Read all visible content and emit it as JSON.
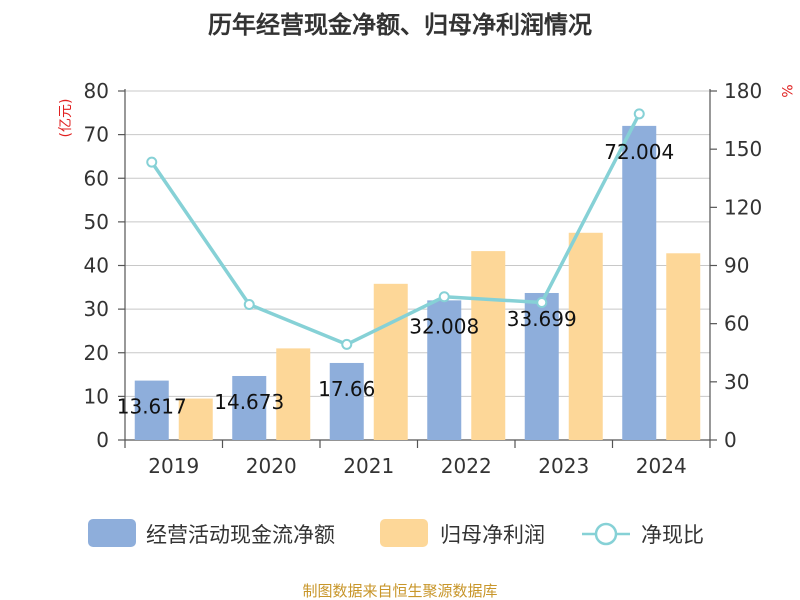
{
  "chart_data": {
    "type": "bar",
    "title": "历年经营现金净额、归母净利润情况",
    "categories": [
      "2019",
      "2020",
      "2021",
      "2022",
      "2023",
      "2024"
    ],
    "series": [
      {
        "name": "经营活动现金流净额",
        "kind": "bar",
        "axis": "left",
        "color": "#8eaedb",
        "values": [
          13.617,
          14.673,
          17.66,
          32.008,
          33.699,
          72.004
        ],
        "labels": [
          "13.617",
          "14.673",
          "17.66",
          "32.008",
          "33.699",
          "72.004"
        ]
      },
      {
        "name": "归母净利润",
        "kind": "bar",
        "axis": "left",
        "color": "#fdd798",
        "values": [
          9.5,
          21.0,
          35.8,
          43.3,
          47.5,
          42.8
        ]
      },
      {
        "name": "净现比",
        "kind": "line",
        "axis": "right",
        "color": "#86d1d6",
        "values": [
          143.3,
          69.9,
          49.3,
          73.9,
          70.9,
          168.2
        ]
      }
    ],
    "ylim_left": [
      0,
      80
    ],
    "yticks_left": [
      0,
      10,
      20,
      30,
      40,
      50,
      60,
      70,
      80
    ],
    "ylabel_left": "(亿元)",
    "ylim_right": [
      0,
      180
    ],
    "yticks_right": [
      0,
      30,
      60,
      90,
      120,
      150,
      180
    ],
    "ylabel_right": "%",
    "grid": true,
    "legend_position": "bottom"
  },
  "source": "制图数据来自恒生聚源数据库"
}
